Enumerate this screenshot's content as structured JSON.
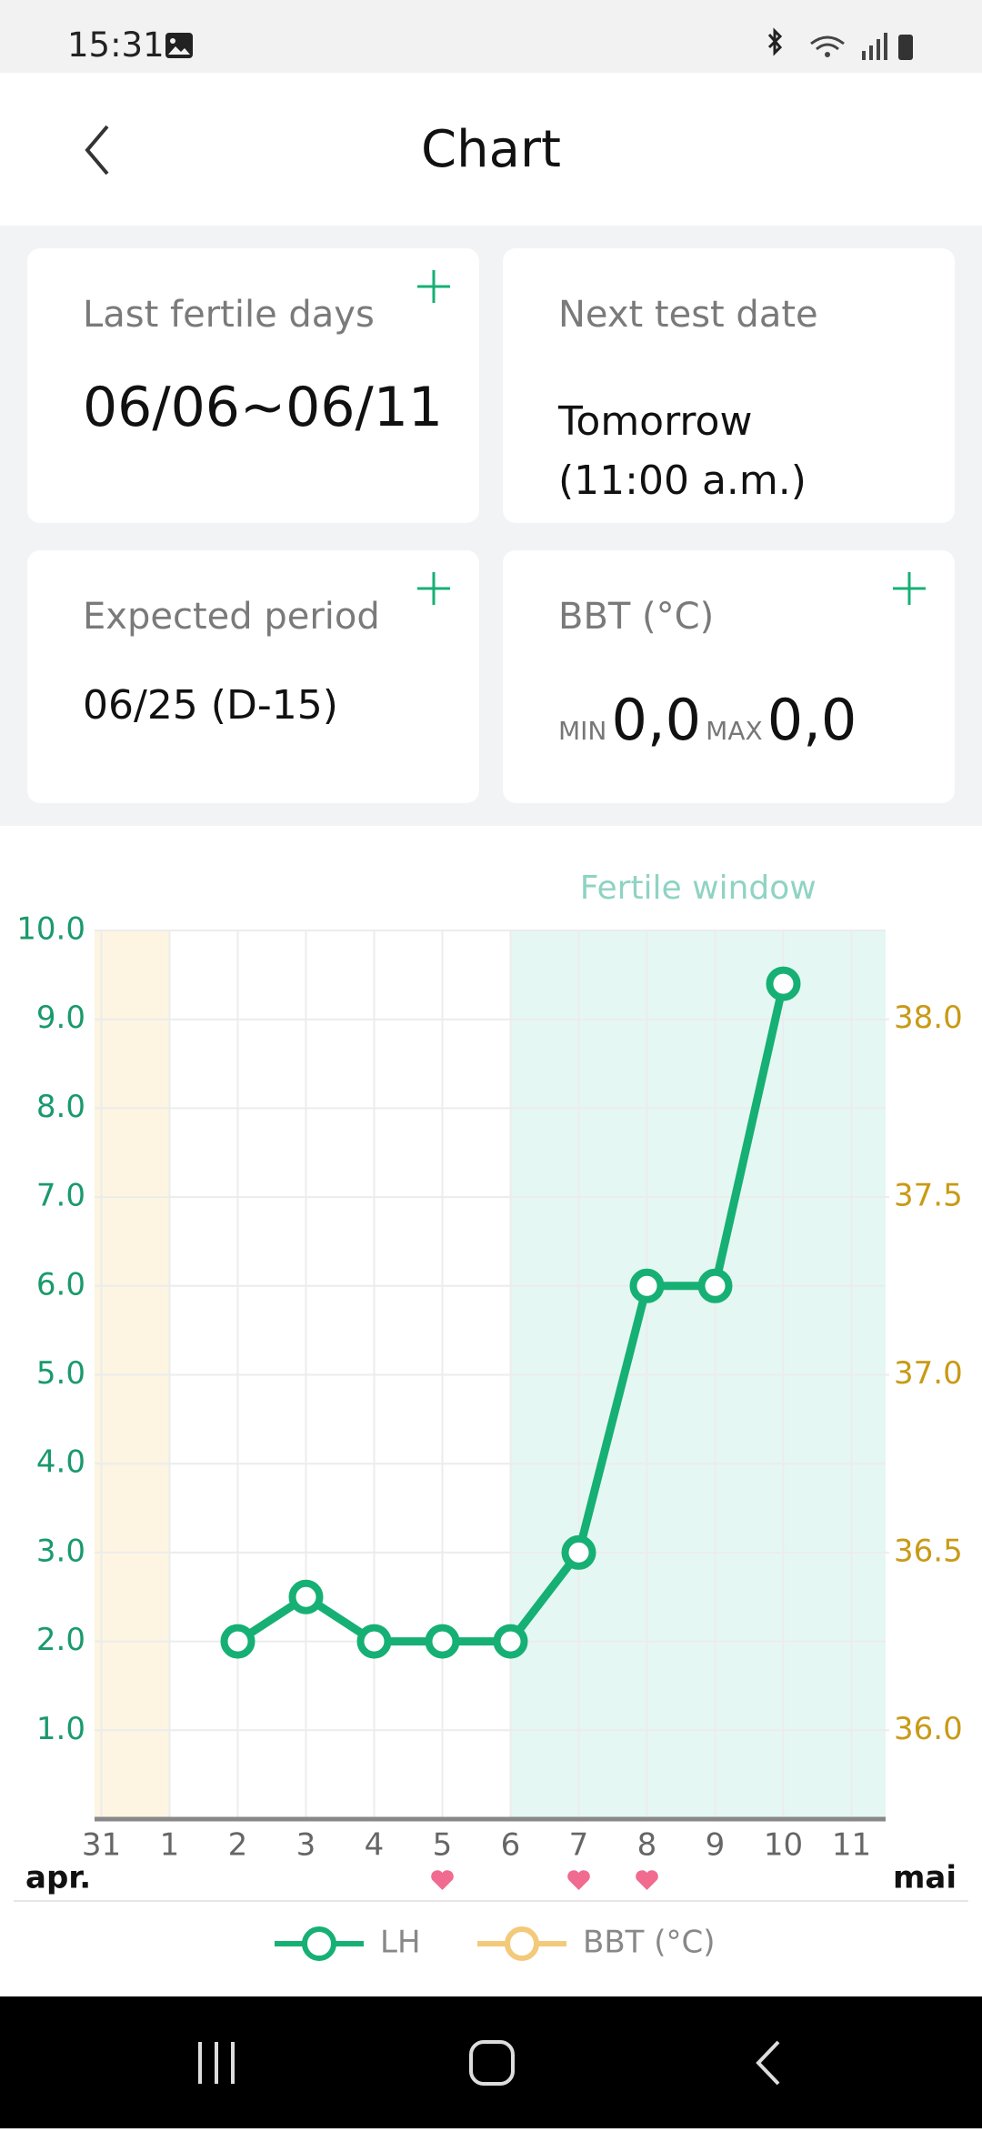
{
  "status_bar": {
    "time": "15:31"
  },
  "header": {
    "title": "Chart"
  },
  "cards": [
    {
      "label": "Last fertile days",
      "value": "06/06~06/11"
    },
    {
      "label": "Next test date",
      "lines": [
        "Tomorrow",
        "(11:00 a.m.)"
      ]
    },
    {
      "label": "Expected period",
      "value": "06/25 (D-15)"
    },
    {
      "label": "BBT (°C)",
      "min_label": "MIN",
      "min": "0,0",
      "max_label": "MAX",
      "max": "0,0"
    }
  ],
  "chart_data": {
    "type": "line",
    "categories": [
      "31",
      "1",
      "2",
      "3",
      "4",
      "5",
      "6",
      "7",
      "8",
      "9",
      "10",
      "11"
    ],
    "month_start": "apr.",
    "month_end": "mai",
    "series": [
      {
        "name": "LH",
        "color": "#16b074",
        "values": [
          null,
          null,
          2,
          2.5,
          2,
          2,
          2,
          3,
          6,
          6,
          9.4,
          null
        ]
      },
      {
        "name": "BBT (°C)",
        "color": "#f3c97a",
        "axis": "y2",
        "values": [
          null,
          null,
          null,
          null,
          null,
          null,
          null,
          null,
          null,
          null,
          null,
          null
        ]
      }
    ],
    "ylim": [
      0,
      10
    ],
    "yticks": [
      {
        "value": 1,
        "label": "1.0"
      },
      {
        "value": 2,
        "label": "2.0"
      },
      {
        "value": 3,
        "label": "3.0"
      },
      {
        "value": 4,
        "label": "4.0"
      },
      {
        "value": 5,
        "label": "5.0"
      },
      {
        "value": 6,
        "label": "6.0"
      },
      {
        "value": 7,
        "label": "7.0"
      },
      {
        "value": 8,
        "label": "8.0"
      },
      {
        "value": 9,
        "label": "9.0"
      },
      {
        "value": 10,
        "label": "10.0"
      }
    ],
    "y2lim": [
      35.75,
      38.25
    ],
    "y2ticks": [
      {
        "value": 36,
        "label": "36.0"
      },
      {
        "value": 36.5,
        "label": "36.5"
      },
      {
        "value": 37,
        "label": "37.0"
      },
      {
        "value": 37.5,
        "label": "37.5"
      },
      {
        "value": 38,
        "label": "38.0"
      }
    ],
    "bands": [
      {
        "from": "31",
        "to": "1",
        "color": "#fdf5e2"
      },
      {
        "label": "Fertile window",
        "from": "6",
        "to": "11",
        "color": "#e5f7f3"
      }
    ],
    "hearts": [
      false,
      false,
      false,
      false,
      false,
      true,
      false,
      true,
      true,
      false,
      false,
      false
    ],
    "heart_color": "#f06b8f",
    "y_color": "#1a9a6c",
    "y2_color": "#c99a16",
    "grid": true
  }
}
